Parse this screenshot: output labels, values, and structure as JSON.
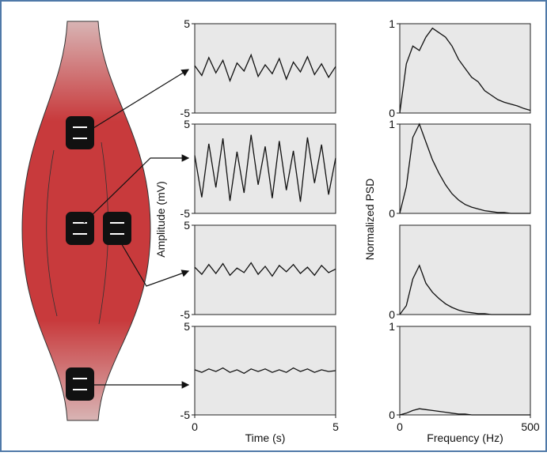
{
  "chart_data": [
    {
      "type": "line",
      "ylabel": "Amplitude (mV)",
      "xlim": [
        0,
        5
      ],
      "ylim": [
        -5,
        5
      ],
      "yticks": [
        -5,
        5
      ],
      "color": "#111111",
      "x": [
        0,
        0.25,
        0.5,
        0.75,
        1,
        1.25,
        1.5,
        1.75,
        2,
        2.25,
        2.5,
        2.75,
        3,
        3.25,
        3.5,
        3.75,
        4,
        4.25,
        4.5,
        4.75,
        5
      ],
      "values": [
        0.3,
        -0.8,
        1.2,
        -0.5,
        0.9,
        -1.4,
        0.6,
        -0.3,
        1.5,
        -0.9,
        0.4,
        -0.6,
        1.1,
        -1.2,
        0.7,
        -0.4,
        1.3,
        -0.7,
        0.5,
        -1.0,
        0.2
      ]
    },
    {
      "type": "line",
      "xlim": [
        0,
        5
      ],
      "ylim": [
        -5,
        5
      ],
      "yticks": [
        -5,
        5
      ],
      "color": "#111111",
      "x": [
        0,
        0.25,
        0.5,
        0.75,
        1,
        1.25,
        1.5,
        1.75,
        2,
        2.25,
        2.5,
        2.75,
        3,
        3.25,
        3.5,
        3.75,
        4,
        4.25,
        4.5,
        4.75,
        5
      ],
      "values": [
        1.5,
        -3.2,
        2.8,
        -2.1,
        3.4,
        -3.6,
        1.9,
        -2.7,
        3.8,
        -1.8,
        2.5,
        -3.3,
        3.1,
        -2.4,
        2.0,
        -3.7,
        3.5,
        -1.6,
        2.7,
        -2.9,
        1.2
      ]
    },
    {
      "type": "line",
      "xlim": [
        0,
        5
      ],
      "ylim": [
        -5,
        5
      ],
      "yticks": [
        -5,
        5
      ],
      "color": "#111111",
      "x": [
        0,
        0.25,
        0.5,
        0.75,
        1,
        1.25,
        1.5,
        1.75,
        2,
        2.25,
        2.5,
        2.75,
        3,
        3.25,
        3.5,
        3.75,
        4,
        4.25,
        4.5,
        4.75,
        5
      ],
      "values": [
        0.3,
        -0.5,
        0.6,
        -0.4,
        0.7,
        -0.6,
        0.2,
        -0.3,
        0.8,
        -0.5,
        0.4,
        -0.7,
        0.5,
        -0.2,
        0.6,
        -0.4,
        0.3,
        -0.6,
        0.5,
        -0.3,
        0.1
      ]
    },
    {
      "type": "line",
      "xlabel": "Time (s)",
      "xlim": [
        0,
        5
      ],
      "ylim": [
        -5,
        5
      ],
      "xticks": [
        0,
        5
      ],
      "yticks": [
        -5,
        5
      ],
      "color": "#111111",
      "x": [
        0,
        0.25,
        0.5,
        0.75,
        1,
        1.25,
        1.5,
        1.75,
        2,
        2.25,
        2.5,
        2.75,
        3,
        3.25,
        3.5,
        3.75,
        4,
        4.25,
        4.5,
        4.75,
        5
      ],
      "values": [
        0.1,
        -0.2,
        0.2,
        -0.1,
        0.3,
        -0.2,
        0.1,
        -0.3,
        0.2,
        -0.1,
        0.2,
        -0.2,
        0.1,
        -0.2,
        0.3,
        -0.1,
        0.2,
        -0.2,
        0.1,
        -0.1,
        0
      ]
    },
    {
      "type": "line",
      "ylabel": "Normalized PSD",
      "xlim": [
        0,
        500
      ],
      "ylim": [
        0,
        1
      ],
      "yticks": [
        0,
        1
      ],
      "color": "#111111",
      "x": [
        0,
        25,
        50,
        75,
        100,
        125,
        150,
        175,
        200,
        225,
        250,
        275,
        300,
        325,
        350,
        375,
        400,
        425,
        450,
        475,
        500
      ],
      "values": [
        0,
        0.55,
        0.75,
        0.7,
        0.85,
        0.95,
        0.9,
        0.85,
        0.75,
        0.6,
        0.5,
        0.4,
        0.35,
        0.25,
        0.2,
        0.15,
        0.12,
        0.1,
        0.08,
        0.05,
        0.03
      ]
    },
    {
      "type": "line",
      "xlim": [
        0,
        500
      ],
      "ylim": [
        0,
        1
      ],
      "yticks": [
        0,
        1
      ],
      "color": "#111111",
      "x": [
        0,
        25,
        50,
        75,
        100,
        125,
        150,
        175,
        200,
        225,
        250,
        275,
        300,
        325,
        350,
        375,
        400,
        425,
        450,
        475,
        500
      ],
      "values": [
        0,
        0.3,
        0.85,
        1.0,
        0.8,
        0.6,
        0.45,
        0.32,
        0.22,
        0.15,
        0.1,
        0.07,
        0.05,
        0.03,
        0.02,
        0.01,
        0.01,
        0,
        0,
        0,
        0
      ]
    },
    {
      "type": "line",
      "xlim": [
        0,
        500
      ],
      "ylim": [
        0,
        1
      ],
      "yticks": [
        0
      ],
      "color": "#111111",
      "x": [
        0,
        25,
        50,
        75,
        100,
        125,
        150,
        175,
        200,
        225,
        250,
        275,
        300,
        325,
        350,
        375,
        400,
        425,
        450,
        475,
        500
      ],
      "values": [
        0,
        0.1,
        0.4,
        0.55,
        0.35,
        0.25,
        0.18,
        0.12,
        0.08,
        0.05,
        0.03,
        0.02,
        0.01,
        0.01,
        0,
        0,
        0,
        0,
        0,
        0,
        0
      ]
    },
    {
      "type": "line",
      "xlabel": "Frequency (Hz)",
      "xlim": [
        0,
        500
      ],
      "ylim": [
        0,
        1
      ],
      "xticks": [
        0,
        500
      ],
      "yticks": [
        0,
        1
      ],
      "color": "#111111",
      "x": [
        0,
        25,
        50,
        75,
        100,
        125,
        150,
        175,
        200,
        225,
        250,
        275,
        300,
        325,
        350,
        375,
        400,
        425,
        450,
        475,
        500
      ],
      "values": [
        0,
        0.02,
        0.05,
        0.07,
        0.06,
        0.05,
        0.04,
        0.03,
        0.02,
        0.01,
        0.01,
        0,
        0,
        0,
        0,
        0,
        0,
        0,
        0,
        0,
        0
      ]
    }
  ]
}
